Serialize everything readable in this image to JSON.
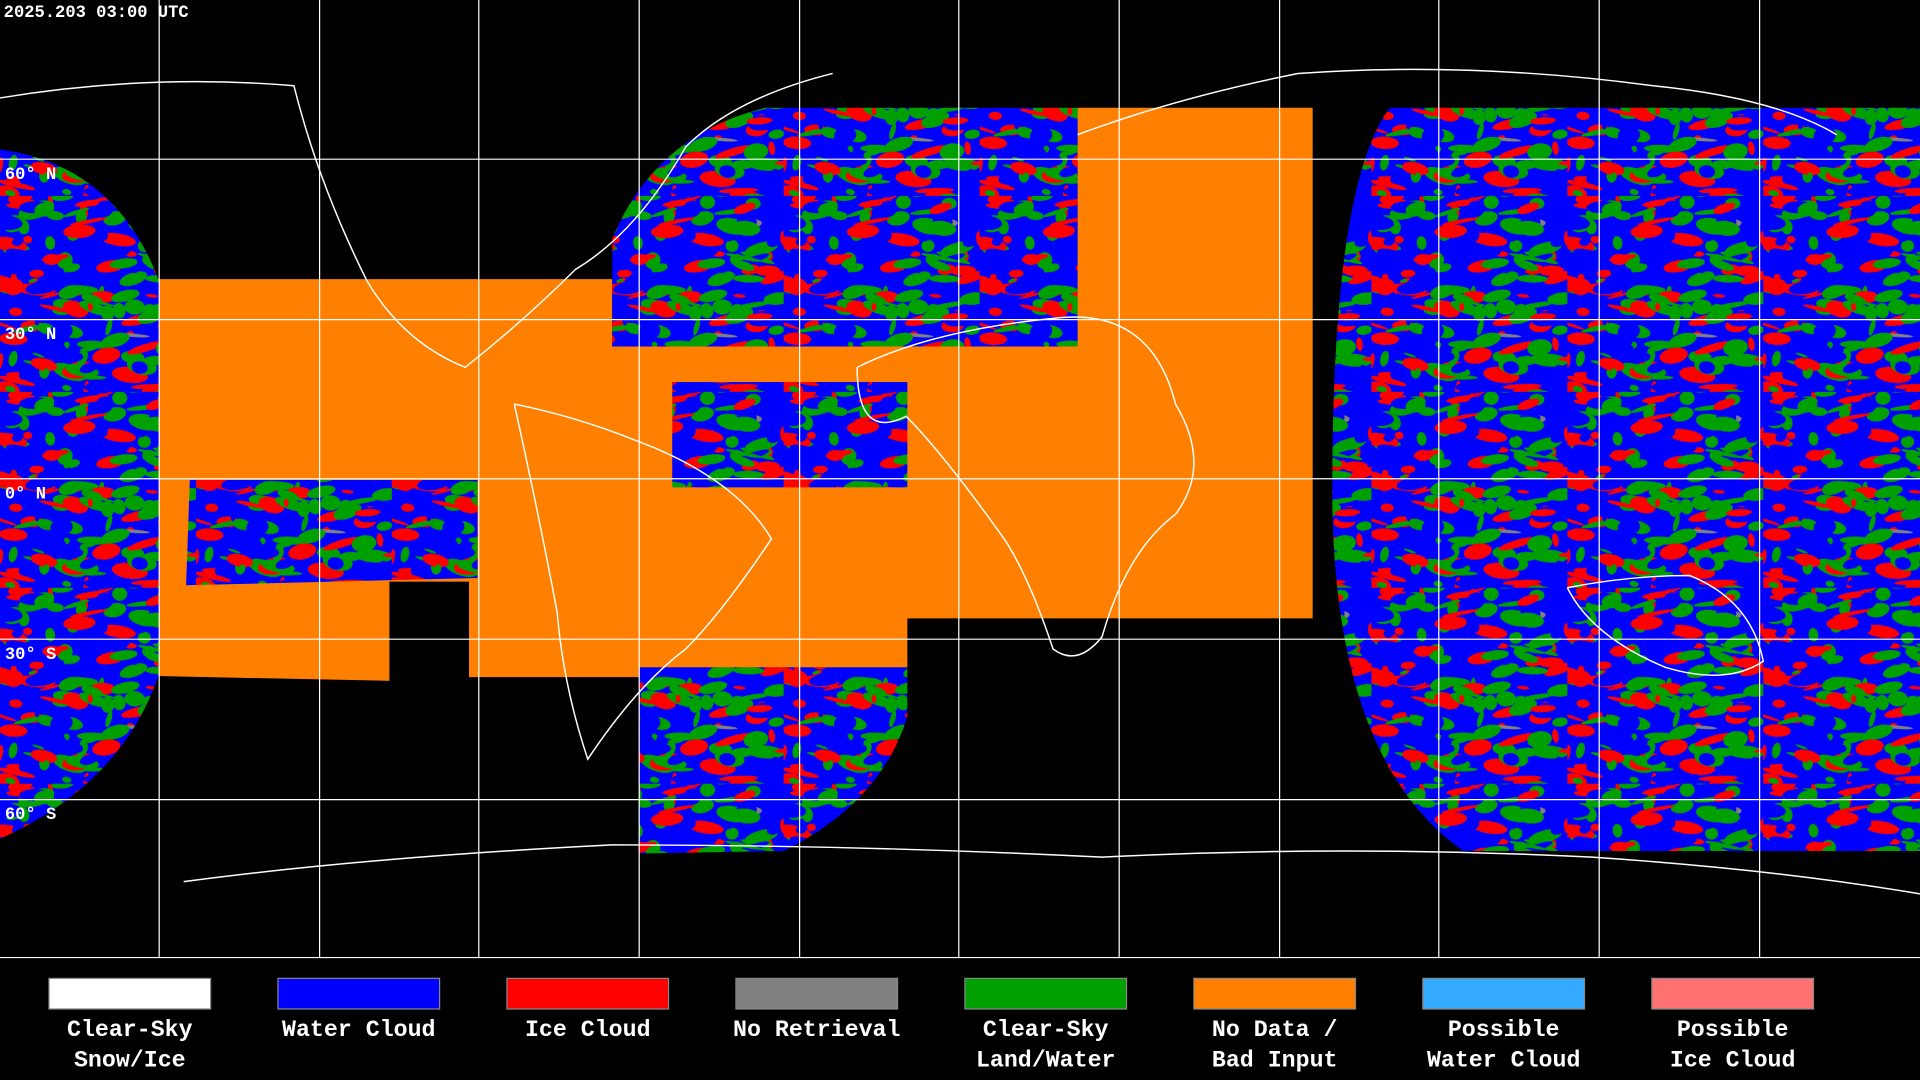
{
  "header": {
    "timestamp": "2025.203 03:00 UTC"
  },
  "map": {
    "lat_labels": [
      "60° N",
      "30° N",
      "0° N",
      "30° S",
      "60° S"
    ]
  },
  "legend": {
    "items": [
      {
        "lines": [
          "Clear-Sky",
          "Snow/Ice"
        ],
        "color": "#ffffff"
      },
      {
        "lines": [
          "Water Cloud"
        ],
        "color": "#0000ff"
      },
      {
        "lines": [
          "Ice Cloud"
        ],
        "color": "#ff0000"
      },
      {
        "lines": [
          "No Retrieval"
        ],
        "color": "#808080"
      },
      {
        "lines": [
          "Clear-Sky",
          "Land/Water"
        ],
        "color": "#00a000"
      },
      {
        "lines": [
          "No Data /",
          "Bad Input"
        ],
        "color": "#ff8000"
      },
      {
        "lines": [
          "Possible",
          "Water Cloud"
        ],
        "color": "#33aaff"
      },
      {
        "lines": [
          "Possible",
          "Ice Cloud"
        ],
        "color": "#ff7070"
      }
    ]
  }
}
